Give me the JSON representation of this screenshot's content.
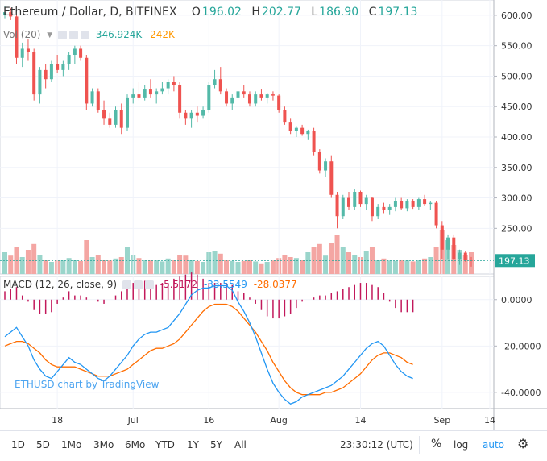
{
  "header": {
    "symbol": "Ethereum / Dollar, D, BITFINEX",
    "open_label": "O",
    "open": "196.02",
    "high_label": "H",
    "high": "202.77",
    "low_label": "L",
    "low": "186.90",
    "close_label": "C",
    "close": "197.13"
  },
  "volume_legend": {
    "label": "Vol (20)",
    "value1": "346.924K",
    "value2": "242K"
  },
  "macd_legend": {
    "label": "MACD (12, 26, close, 9)",
    "hist": "-5.5172",
    "macd": "-33.5549",
    "signal": "-28.0377"
  },
  "watermark": "ETHUSD chart by TradingView",
  "toolbar": {
    "ranges": [
      "1D",
      "5D",
      "1Mo",
      "3Mo",
      "6Mo",
      "YTD",
      "1Y",
      "5Y",
      "All"
    ],
    "time": "23:30:12 (UTC)",
    "percent": "%",
    "log": "log",
    "auto": "auto"
  },
  "colors": {
    "up": "#53b9a8",
    "down": "#ef5350",
    "macd": "#2196f3",
    "signal": "#ff6d00",
    "hist": "#c2185b",
    "accent": "#2196f3"
  },
  "chart_data": {
    "type": "candlestick",
    "x_ticks": [
      "18",
      "Jul",
      "16",
      "Aug",
      "14",
      "Sep",
      "14"
    ],
    "price_axis": {
      "ticks": [
        600,
        550,
        500,
        450,
        400,
        350,
        300,
        250
      ],
      "ylim": [
        175,
        625
      ],
      "last_price": 197.13
    },
    "macd_axis": {
      "ticks": [
        0,
        -20,
        -40
      ],
      "ylim": [
        -47,
        10
      ]
    },
    "candles": [
      [
        600,
        615,
        595,
        605
      ],
      [
        605,
        612,
        592,
        598
      ],
      [
        598,
        600,
        520,
        530
      ],
      [
        530,
        555,
        515,
        545
      ],
      [
        545,
        560,
        525,
        540
      ],
      [
        540,
        545,
        460,
        470
      ],
      [
        470,
        515,
        455,
        510
      ],
      [
        510,
        520,
        480,
        495
      ],
      [
        495,
        525,
        490,
        520
      ],
      [
        520,
        535,
        505,
        510
      ],
      [
        510,
        525,
        500,
        520
      ],
      [
        520,
        540,
        510,
        535
      ],
      [
        535,
        550,
        520,
        545
      ],
      [
        545,
        550,
        525,
        530
      ],
      [
        530,
        535,
        445,
        455
      ],
      [
        455,
        480,
        450,
        475
      ],
      [
        475,
        480,
        440,
        445
      ],
      [
        445,
        460,
        420,
        430
      ],
      [
        430,
        440,
        415,
        420
      ],
      [
        420,
        450,
        415,
        445
      ],
      [
        445,
        455,
        405,
        415
      ],
      [
        415,
        470,
        410,
        465
      ],
      [
        465,
        480,
        455,
        470
      ],
      [
        470,
        490,
        460,
        465
      ],
      [
        465,
        485,
        460,
        478
      ],
      [
        478,
        495,
        465,
        470
      ],
      [
        470,
        480,
        455,
        475
      ],
      [
        475,
        490,
        470,
        480
      ],
      [
        480,
        495,
        470,
        490
      ],
      [
        490,
        500,
        475,
        485
      ],
      [
        485,
        490,
        430,
        440
      ],
      [
        440,
        445,
        420,
        430
      ],
      [
        430,
        445,
        415,
        440
      ],
      [
        440,
        450,
        425,
        435
      ],
      [
        435,
        450,
        430,
        445
      ],
      [
        445,
        490,
        440,
        485
      ],
      [
        485,
        510,
        480,
        495
      ],
      [
        495,
        515,
        470,
        475
      ],
      [
        475,
        480,
        450,
        455
      ],
      [
        455,
        470,
        445,
        465
      ],
      [
        465,
        480,
        455,
        475
      ],
      [
        475,
        485,
        465,
        470
      ],
      [
        470,
        475,
        450,
        455
      ],
      [
        455,
        475,
        450,
        470
      ],
      [
        470,
        478,
        460,
        465
      ],
      [
        465,
        472,
        455,
        470
      ],
      [
        470,
        475,
        460,
        468
      ],
      [
        468,
        470,
        440,
        445
      ],
      [
        445,
        450,
        420,
        425
      ],
      [
        425,
        430,
        405,
        410
      ],
      [
        410,
        418,
        400,
        415
      ],
      [
        415,
        420,
        402,
        405
      ],
      [
        405,
        412,
        395,
        410
      ],
      [
        410,
        415,
        370,
        375
      ],
      [
        375,
        380,
        340,
        345
      ],
      [
        345,
        365,
        335,
        360
      ],
      [
        360,
        370,
        300,
        305
      ],
      [
        305,
        310,
        250,
        270
      ],
      [
        270,
        305,
        265,
        300
      ],
      [
        300,
        310,
        280,
        285
      ],
      [
        285,
        315,
        280,
        310
      ],
      [
        310,
        312,
        285,
        290
      ],
      [
        290,
        305,
        280,
        300
      ],
      [
        300,
        302,
        262,
        270
      ],
      [
        270,
        290,
        265,
        285
      ],
      [
        285,
        292,
        275,
        280
      ],
      [
        280,
        290,
        272,
        285
      ],
      [
        285,
        300,
        278,
        295
      ],
      [
        295,
        300,
        280,
        283
      ],
      [
        283,
        298,
        278,
        295
      ],
      [
        295,
        298,
        282,
        285
      ],
      [
        285,
        300,
        280,
        298
      ],
      [
        298,
        305,
        287,
        290
      ],
      [
        290,
        295,
        280,
        292
      ],
      [
        292,
        295,
        250,
        255
      ],
      [
        255,
        262,
        200,
        215
      ],
      [
        215,
        240,
        200,
        235
      ],
      [
        235,
        240,
        195,
        200
      ],
      [
        200,
        215,
        190,
        210
      ],
      [
        210,
        212,
        195,
        198
      ],
      [
        198,
        203,
        187,
        197
      ]
    ],
    "volume": [
      0.45,
      0.38,
      0.55,
      0.35,
      0.5,
      0.62,
      0.4,
      0.3,
      0.25,
      0.3,
      0.28,
      0.33,
      0.3,
      0.27,
      0.7,
      0.35,
      0.4,
      0.3,
      0.28,
      0.32,
      0.35,
      0.55,
      0.4,
      0.33,
      0.3,
      0.28,
      0.3,
      0.26,
      0.32,
      0.3,
      0.4,
      0.38,
      0.3,
      0.27,
      0.25,
      0.45,
      0.48,
      0.42,
      0.3,
      0.27,
      0.25,
      0.27,
      0.3,
      0.26,
      0.22,
      0.25,
      0.28,
      0.33,
      0.4,
      0.35,
      0.33,
      0.3,
      0.45,
      0.55,
      0.62,
      0.38,
      0.65,
      0.8,
      0.55,
      0.45,
      0.4,
      0.35,
      0.48,
      0.55,
      0.3,
      0.32,
      0.28,
      0.27,
      0.3,
      0.28,
      0.26,
      0.3,
      0.32,
      0.35,
      0.55,
      0.9,
      0.7,
      0.6,
      0.5,
      0.4,
      0.45
    ],
    "macd": [
      -16,
      -14,
      -12,
      -16,
      -20,
      -26,
      -30,
      -33,
      -34,
      -31,
      -28,
      -25,
      -27,
      -28,
      -30,
      -32,
      -34,
      -35,
      -33,
      -30,
      -27,
      -24,
      -20,
      -17,
      -15,
      -14,
      -14,
      -13,
      -12,
      -9,
      -6,
      -2,
      2,
      4,
      5,
      5,
      6,
      6,
      6,
      4,
      -1,
      -5,
      -10,
      -16,
      -23,
      -30,
      -36,
      -40,
      -43,
      -45,
      -44,
      -42,
      -41,
      -40,
      -39,
      -38,
      -37,
      -35,
      -33,
      -30,
      -27,
      -24,
      -21,
      -19,
      -18,
      -20,
      -24,
      -28,
      -31,
      -33,
      -34
    ],
    "signal": [
      -20,
      -19,
      -18,
      -18,
      -19,
      -21,
      -23,
      -26,
      -28,
      -29,
      -29,
      -29,
      -29,
      -30,
      -31,
      -32,
      -33,
      -33,
      -33,
      -32,
      -31,
      -30,
      -28,
      -26,
      -24,
      -22,
      -21,
      -21,
      -20,
      -19,
      -17,
      -14,
      -11,
      -8,
      -5,
      -3,
      -2,
      -2,
      -2,
      -3,
      -5,
      -8,
      -11,
      -14,
      -18,
      -22,
      -27,
      -31,
      -35,
      -38,
      -40,
      -41,
      -41,
      -41,
      -41,
      -40,
      -40,
      -39,
      -38,
      -36,
      -34,
      -32,
      -29,
      -26,
      -24,
      -23,
      -23,
      -24,
      -25,
      -27,
      -28
    ]
  }
}
